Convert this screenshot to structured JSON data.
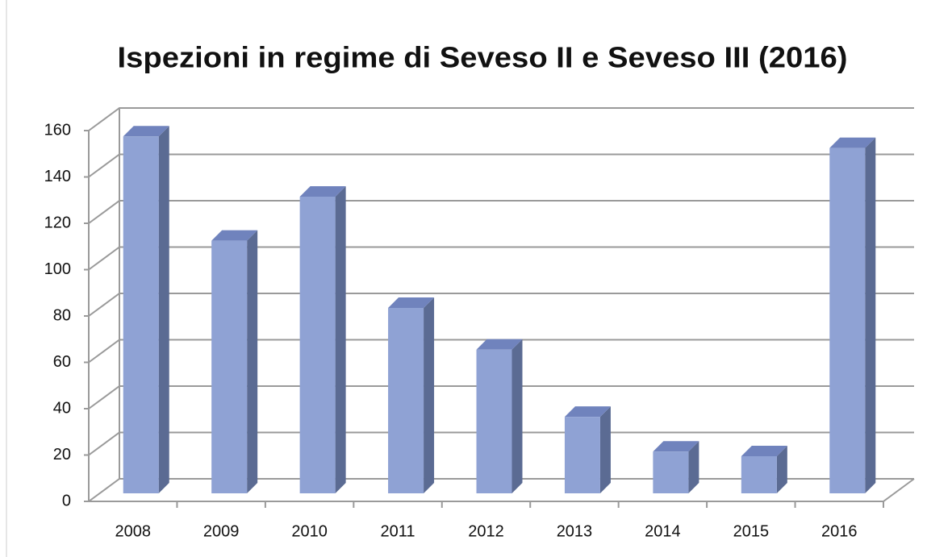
{
  "chart_data": {
    "type": "bar",
    "title": "Ispezioni in regime di Seveso II e Seveso III (2016)",
    "categories": [
      "2008",
      "2009",
      "2010",
      "2011",
      "2012",
      "2013",
      "2014",
      "2015",
      "2016"
    ],
    "values": [
      154,
      109,
      128,
      80,
      62,
      33,
      18,
      16,
      149
    ],
    "color": "#8fa2d4",
    "ylim": [
      0,
      160
    ],
    "yticks": [
      0,
      20,
      40,
      60,
      80,
      100,
      120,
      140,
      160
    ],
    "grid": true
  }
}
